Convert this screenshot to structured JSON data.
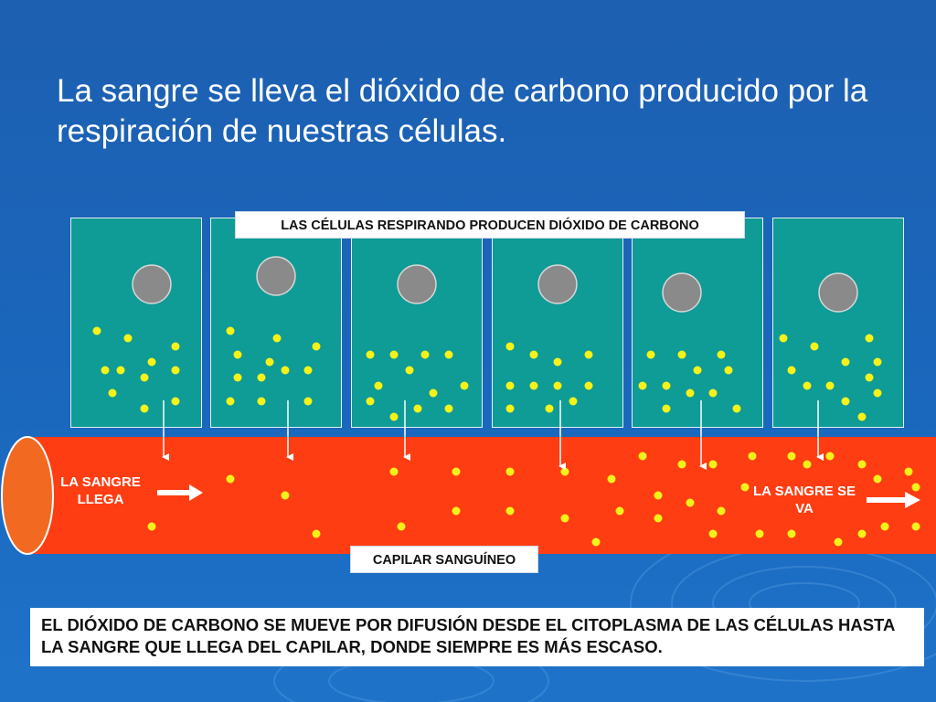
{
  "slide": {
    "title": "La sangre se lleva el dióxido de carbono producido por la respiración de nuestras células."
  },
  "labels": {
    "cells_breathing": "LAS CÉLULAS RESPIRANDO PRODUCEN DIÓXIDO DE CARBONO",
    "blood_arrives": "LA SANGRE LLEGA",
    "blood_leaves": "LA SANGRE SE VA",
    "capillary": "CAPILAR SANGUÍNEO",
    "note": "EL DIÓXIDO DE CARBONO SE MUEVE POR DIFUSIÓN DESDE EL CITOPLASMA DE LAS CÉLULAS HASTA LA SANGRE QUE LLEGA DEL CAPILAR, DONDE SIEMPRE ES MÁS ESCASO."
  },
  "colors": {
    "background": "#1d62b6",
    "cell": "#0f9b96",
    "nucleus": "#8a8a8a",
    "co2_dot": "#f5f219",
    "blood": "#ff3d12",
    "vessel_end": "#f26a22",
    "arrow": "#ffffff"
  },
  "icons": [
    "arrow-right-icon",
    "arrow-down-icon"
  ]
}
